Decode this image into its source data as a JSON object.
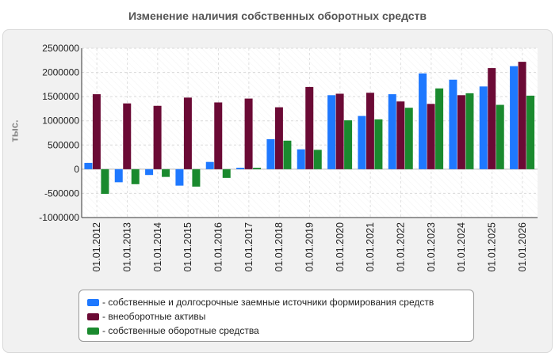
{
  "chart_data": {
    "type": "bar",
    "title": "Изменение наличия собственных оборотных средств",
    "ylabel": "тыс.",
    "xlabel": "",
    "ylim": [
      -1000000,
      2500000
    ],
    "yticks": [
      2500000,
      2000000,
      1500000,
      1000000,
      500000,
      0,
      -500000,
      -1000000
    ],
    "ytick_labels": [
      "2500000",
      "2000000",
      "1500000",
      "1000000",
      "500000",
      "0",
      "-500000",
      "-1000000"
    ],
    "grid": true,
    "legend_position": "bottom",
    "categories": [
      "01.01.2012",
      "01.01.2013",
      "01.01.2014",
      "01.01.2015",
      "01.01.2016",
      "01.01.2017",
      "01.01.2018",
      "01.01.2019",
      "01.01.2020",
      "01.01.2021",
      "01.01.2022",
      "01.01.2023",
      "01.01.2024",
      "01.01.2025",
      "01.01.2026"
    ],
    "series": [
      {
        "name": "- собственные и долгосрочные заемные источники формирования средств",
        "color": "#1e78ff",
        "values": [
          130000,
          -270000,
          -120000,
          -340000,
          150000,
          30000,
          620000,
          410000,
          1530000,
          1100000,
          1550000,
          1980000,
          1850000,
          1710000,
          2130000
        ]
      },
      {
        "name": "- внеоборотные активы",
        "color": "#6b0a35",
        "values": [
          1550000,
          1360000,
          1310000,
          1480000,
          1380000,
          1460000,
          1280000,
          1700000,
          1560000,
          1580000,
          1400000,
          1350000,
          1530000,
          2090000,
          2220000
        ]
      },
      {
        "name": "- собственные оборотные средства",
        "color": "#1a8a2e",
        "values": [
          -510000,
          -310000,
          -160000,
          -360000,
          -180000,
          30000,
          590000,
          400000,
          1010000,
          1030000,
          1270000,
          1670000,
          1570000,
          1330000,
          1520000
        ]
      }
    ]
  }
}
